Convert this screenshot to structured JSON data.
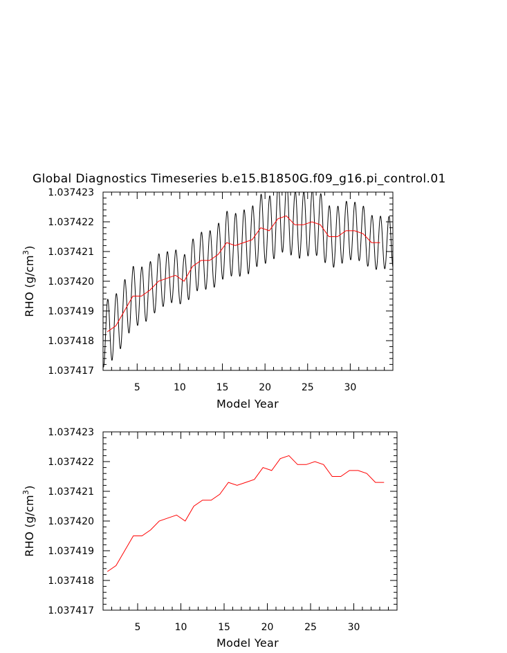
{
  "title": "Global Diagnostics Timeseries b.e15.B1850G.f09_g16.pi_control.01",
  "chart_data": [
    {
      "type": "line",
      "xlabel": "Model Year",
      "ylabel": "RHO (g/cm³)",
      "ylabel_base": "RHO (g/cm",
      "ylabel_sup": "3",
      "ylabel_end": ")",
      "xlim": [
        1,
        35
      ],
      "ylim": [
        1.037417,
        1.037423
      ],
      "xticks": [
        5,
        10,
        15,
        20,
        25,
        30
      ],
      "yticks": [
        "1.037417",
        "1.037418",
        "1.037419",
        "1.037420",
        "1.037421",
        "1.037422",
        "1.037423"
      ],
      "monthly_oscillation": {
        "x_start": 1,
        "x_end": 35,
        "samples_per_year": 12,
        "amplitude": [
          [
            1,
            1.1e-06
          ],
          [
            10,
            8.5e-07
          ],
          [
            15,
            1.05e-06
          ],
          [
            22,
            1.18e-06
          ],
          [
            34,
            8.8e-07
          ]
        ],
        "color": "#000000"
      },
      "series": [
        {
          "color": "#ff0000",
          "x": [
            1.5,
            2.5,
            3.5,
            4.5,
            5.5,
            6.5,
            7.5,
            8.5,
            9.5,
            10.5,
            11.5,
            12.5,
            13.5,
            14.5,
            15.5,
            16.5,
            17.5,
            18.5,
            19.5,
            20.5,
            21.5,
            22.5,
            23.5,
            24.5,
            25.5,
            26.5,
            27.5,
            28.5,
            29.5,
            30.5,
            31.5,
            32.5,
            33.5
          ],
          "y": [
            1.0374183,
            1.0374185,
            1.037419,
            1.0374195,
            1.0374195,
            1.0374197,
            1.03742,
            1.0374201,
            1.0374202,
            1.03742,
            1.0374205,
            1.0374207,
            1.0374207,
            1.0374209,
            1.0374213,
            1.0374212,
            1.0374213,
            1.0374214,
            1.0374218,
            1.0374217,
            1.0374221,
            1.0374222,
            1.0374219,
            1.0374219,
            1.037422,
            1.0374219,
            1.0374215,
            1.0374215,
            1.0374217,
            1.0374217,
            1.0374216,
            1.0374213,
            1.0374213
          ]
        }
      ]
    },
    {
      "type": "line",
      "xlabel": "Model Year",
      "ylabel": "RHO (g/cm³)",
      "ylabel_base": "RHO (g/cm",
      "ylabel_sup": "3",
      "ylabel_end": ")",
      "xlim": [
        1,
        35
      ],
      "ylim": [
        1.037417,
        1.037423
      ],
      "xticks": [
        5,
        10,
        15,
        20,
        25,
        30
      ],
      "yticks": [
        "1.037417",
        "1.037418",
        "1.037419",
        "1.037420",
        "1.037421",
        "1.037422",
        "1.037423"
      ],
      "series": [
        {
          "color": "#ff0000",
          "x": [
            1.5,
            2.5,
            3.5,
            4.5,
            5.5,
            6.5,
            7.5,
            8.5,
            9.5,
            10.5,
            11.5,
            12.5,
            13.5,
            14.5,
            15.5,
            16.5,
            17.5,
            18.5,
            19.5,
            20.5,
            21.5,
            22.5,
            23.5,
            24.5,
            25.5,
            26.5,
            27.5,
            28.5,
            29.5,
            30.5,
            31.5,
            32.5,
            33.5
          ],
          "y": [
            1.0374183,
            1.0374185,
            1.037419,
            1.0374195,
            1.0374195,
            1.0374197,
            1.03742,
            1.0374201,
            1.0374202,
            1.03742,
            1.0374205,
            1.0374207,
            1.0374207,
            1.0374209,
            1.0374213,
            1.0374212,
            1.0374213,
            1.0374214,
            1.0374218,
            1.0374217,
            1.0374221,
            1.0374222,
            1.0374219,
            1.0374219,
            1.037422,
            1.0374219,
            1.0374215,
            1.0374215,
            1.0374217,
            1.0374217,
            1.0374216,
            1.0374213,
            1.0374213
          ]
        }
      ]
    }
  ]
}
